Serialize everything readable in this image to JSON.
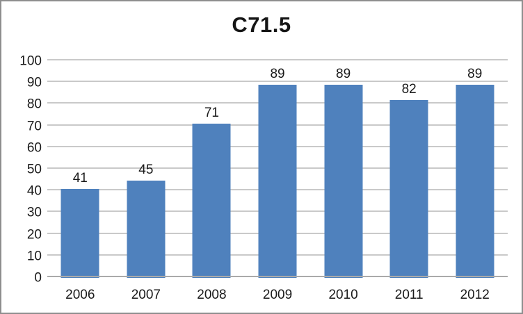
{
  "window": {
    "background": "#ffffff",
    "border_color": "#8e8e8e"
  },
  "chart_data": {
    "type": "bar",
    "title": "C71.5",
    "categories": [
      "2006",
      "2007",
      "2008",
      "2009",
      "2010",
      "2011",
      "2012"
    ],
    "values": [
      41,
      45,
      71,
      89,
      89,
      82,
      89
    ],
    "xlabel": "",
    "ylabel": "",
    "ylim": [
      0,
      100
    ],
    "ytick_step": 10,
    "ytick_labels": [
      "0",
      "10",
      "20",
      "30",
      "40",
      "50",
      "60",
      "70",
      "80",
      "90",
      "100"
    ],
    "grid": true,
    "legend_position": "none",
    "data_labels_shown": true,
    "bar_color": "#4f81bd",
    "gridline_color": "#c9c9c9",
    "axis_line_color": "#aaaaaa",
    "text_color": "#1a1a1a"
  }
}
